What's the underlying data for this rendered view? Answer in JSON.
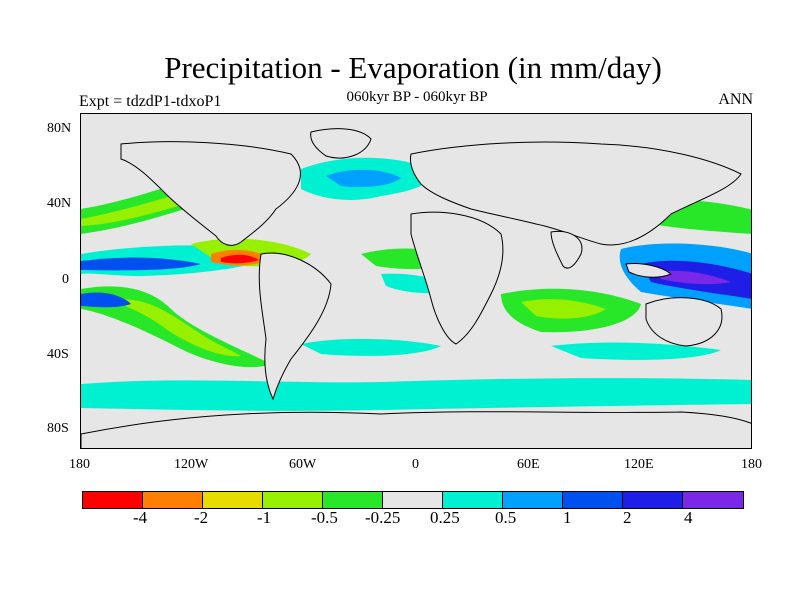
{
  "header": {
    "title": "Precipitation - Evaporation (in mm/day)",
    "subtitle": "060kyr BP - 060kyr BP",
    "left_label": "Expt = tdzdP1-tdxoP1",
    "right_label": "ANN"
  },
  "axes": {
    "y_ticks": [
      "80N",
      "40N",
      "0",
      "40S",
      "80S"
    ],
    "x_ticks": [
      "180",
      "120W",
      "60W",
      "0",
      "60E",
      "120E",
      "180"
    ]
  },
  "legend": {
    "colors": [
      "#ff0000",
      "#ff8000",
      "#e6dc00",
      "#96f000",
      "#28e628",
      "#e6e6e6",
      "#00f0d2",
      "#00a0ff",
      "#0050f0",
      "#1e1ee6",
      "#7828e6"
    ],
    "labels": [
      "-4",
      "-2",
      "-1",
      "-0.5",
      "-0.25",
      "0.25",
      "0.5",
      "1",
      "2",
      "4"
    ]
  },
  "colors": {
    "background": "#e6e6e6",
    "land_outline": "#000000"
  }
}
